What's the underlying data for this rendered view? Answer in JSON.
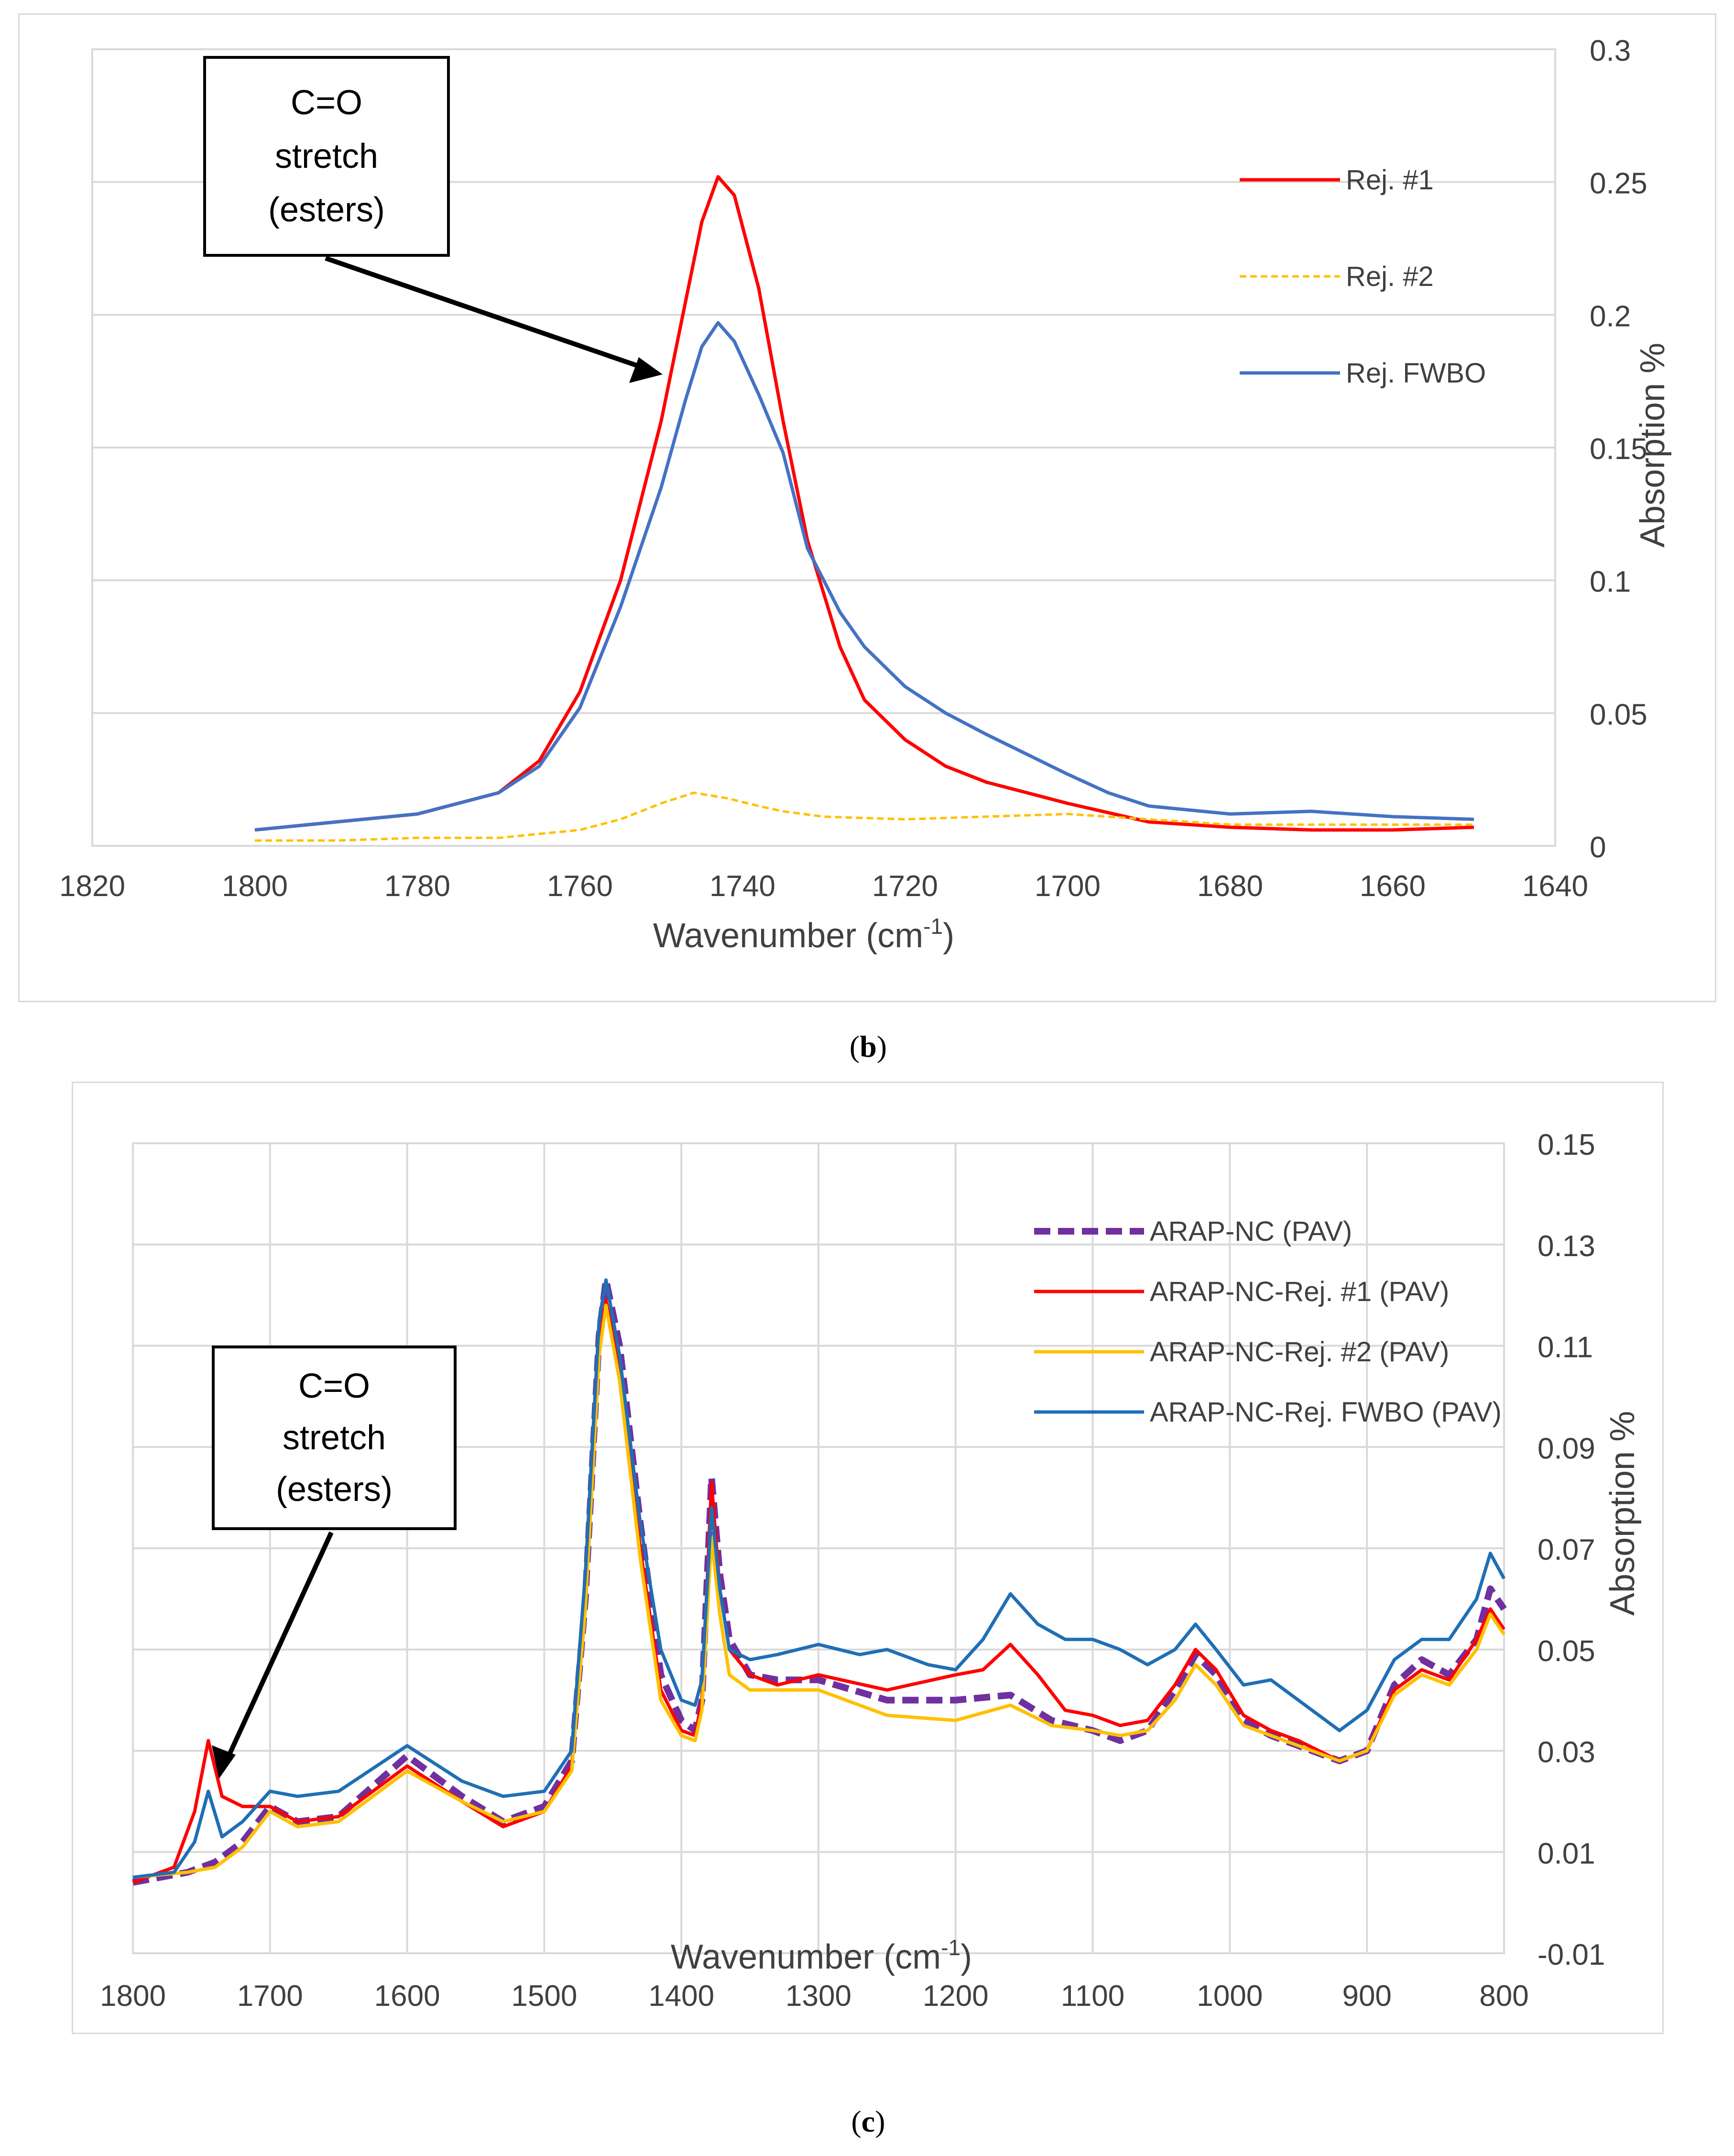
{
  "chart_data": [
    {
      "type": "line",
      "panel_label": "b",
      "title": "",
      "xlabel": "Wavenumber (cm-1)",
      "xlabel_main": "Wavenumber (cm",
      "xlabel_sup": "-1",
      "xlabel_end": ")",
      "ylabel": "Absorption %",
      "xlim": [
        1820,
        1640
      ],
      "ylim": [
        0,
        0.3
      ],
      "x_ticks": [
        "1820",
        "1800",
        "1780",
        "1760",
        "1740",
        "1720",
        "1700",
        "1680",
        "1660",
        "1640"
      ],
      "y_ticks": [
        "0",
        "0.05",
        "0.1",
        "0.15",
        "0.2",
        "0.25",
        "0.3"
      ],
      "grid": "horizontal",
      "legend_position": "top-right",
      "annotation": [
        "C=O",
        "stretch",
        "(esters)"
      ],
      "series": [
        {
          "name": "Rej. #1",
          "color": "#ff0000",
          "style": "solid",
          "x": [
            1800,
            1790,
            1780,
            1770,
            1765,
            1760,
            1755,
            1750,
            1747,
            1745,
            1743,
            1741,
            1738,
            1735,
            1732,
            1728,
            1725,
            1720,
            1715,
            1710,
            1700,
            1690,
            1680,
            1670,
            1660,
            1650
          ],
          "y": [
            0.006,
            0.009,
            0.012,
            0.02,
            0.032,
            0.058,
            0.1,
            0.16,
            0.205,
            0.235,
            0.252,
            0.245,
            0.21,
            0.16,
            0.115,
            0.075,
            0.055,
            0.04,
            0.03,
            0.024,
            0.016,
            0.009,
            0.007,
            0.006,
            0.006,
            0.007
          ]
        },
        {
          "name": "Rej. #2",
          "color": "#ffc000",
          "style": "dashed",
          "x": [
            1800,
            1790,
            1780,
            1770,
            1760,
            1755,
            1750,
            1746,
            1742,
            1738,
            1735,
            1730,
            1720,
            1710,
            1700,
            1690,
            1680,
            1670,
            1660,
            1650
          ],
          "y": [
            0.002,
            0.002,
            0.003,
            0.003,
            0.006,
            0.01,
            0.016,
            0.02,
            0.018,
            0.015,
            0.013,
            0.011,
            0.01,
            0.011,
            0.012,
            0.01,
            0.008,
            0.008,
            0.008,
            0.008
          ]
        },
        {
          "name": "Rej. FWBO",
          "color": "#4472c4",
          "style": "solid",
          "x": [
            1800,
            1790,
            1780,
            1770,
            1765,
            1760,
            1755,
            1750,
            1747,
            1745,
            1743,
            1741,
            1738,
            1735,
            1732,
            1728,
            1725,
            1720,
            1715,
            1710,
            1700,
            1695,
            1690,
            1680,
            1670,
            1660,
            1650
          ],
          "y": [
            0.006,
            0.009,
            0.012,
            0.02,
            0.03,
            0.052,
            0.09,
            0.135,
            0.168,
            0.188,
            0.197,
            0.19,
            0.17,
            0.148,
            0.112,
            0.088,
            0.075,
            0.06,
            0.05,
            0.042,
            0.027,
            0.02,
            0.015,
            0.012,
            0.013,
            0.011,
            0.01
          ]
        }
      ]
    },
    {
      "type": "line",
      "panel_label": "c",
      "title": "",
      "xlabel": "Wavenumber (cm-1)",
      "xlabel_main": "Wavenumber (cm",
      "xlabel_sup": "-1",
      "xlabel_end": ")",
      "ylabel": "Absorption %",
      "xlim": [
        1800,
        800
      ],
      "ylim": [
        -0.01,
        0.15
      ],
      "x_ticks": [
        "1800",
        "1700",
        "1600",
        "1500",
        "1400",
        "1300",
        "1200",
        "1100",
        "1000",
        "900",
        "800"
      ],
      "y_ticks": [
        "-0.01",
        "0.01",
        "0.03",
        "0.05",
        "0.07",
        "0.09",
        "0.11",
        "0.13",
        "0.15"
      ],
      "grid": "both",
      "legend_position": "top-right",
      "annotation": [
        "C=O",
        "stretch",
        "(esters)"
      ],
      "series": [
        {
          "name": "ARAP-NC (PAV)",
          "color": "#7030a0",
          "style": "thick-dashed",
          "x": [
            1800,
            1760,
            1740,
            1720,
            1700,
            1680,
            1650,
            1600,
            1560,
            1530,
            1500,
            1480,
            1470,
            1460,
            1455,
            1445,
            1430,
            1415,
            1400,
            1390,
            1385,
            1378,
            1372,
            1365,
            1350,
            1330,
            1300,
            1250,
            1200,
            1160,
            1130,
            1100,
            1080,
            1060,
            1040,
            1025,
            1010,
            990,
            970,
            950,
            920,
            900,
            880,
            860,
            840,
            820,
            810,
            800
          ],
          "y": [
            0.004,
            0.006,
            0.008,
            0.012,
            0.019,
            0.016,
            0.017,
            0.029,
            0.021,
            0.016,
            0.019,
            0.028,
            0.06,
            0.112,
            0.123,
            0.11,
            0.075,
            0.045,
            0.036,
            0.034,
            0.04,
            0.084,
            0.065,
            0.052,
            0.045,
            0.044,
            0.044,
            0.04,
            0.04,
            0.041,
            0.036,
            0.034,
            0.032,
            0.034,
            0.042,
            0.049,
            0.045,
            0.036,
            0.033,
            0.031,
            0.028,
            0.03,
            0.043,
            0.048,
            0.045,
            0.052,
            0.062,
            0.058
          ]
        },
        {
          "name": "ARAP-NC-Rej. #1 (PAV)",
          "color": "#ff0000",
          "style": "solid",
          "x": [
            1800,
            1770,
            1755,
            1745,
            1735,
            1720,
            1700,
            1680,
            1650,
            1600,
            1560,
            1530,
            1500,
            1480,
            1470,
            1460,
            1455,
            1445,
            1430,
            1415,
            1400,
            1390,
            1385,
            1378,
            1372,
            1365,
            1350,
            1330,
            1300,
            1250,
            1200,
            1180,
            1160,
            1140,
            1120,
            1100,
            1080,
            1060,
            1040,
            1025,
            1010,
            990,
            970,
            950,
            920,
            900,
            880,
            860,
            840,
            820,
            810,
            800
          ],
          "y": [
            0.004,
            0.007,
            0.018,
            0.032,
            0.021,
            0.019,
            0.019,
            0.016,
            0.017,
            0.027,
            0.02,
            0.015,
            0.018,
            0.027,
            0.06,
            0.11,
            0.119,
            0.105,
            0.07,
            0.042,
            0.034,
            0.033,
            0.04,
            0.083,
            0.062,
            0.05,
            0.045,
            0.043,
            0.045,
            0.042,
            0.045,
            0.046,
            0.051,
            0.045,
            0.038,
            0.037,
            0.035,
            0.036,
            0.043,
            0.05,
            0.046,
            0.037,
            0.034,
            0.032,
            0.028,
            0.03,
            0.042,
            0.046,
            0.044,
            0.052,
            0.058,
            0.054
          ]
        },
        {
          "name": "ARAP-NC-Rej. #2 (PAV)",
          "color": "#ffc000",
          "style": "solid",
          "x": [
            1800,
            1760,
            1740,
            1720,
            1700,
            1680,
            1650,
            1600,
            1560,
            1530,
            1500,
            1480,
            1470,
            1460,
            1455,
            1445,
            1430,
            1415,
            1400,
            1390,
            1385,
            1378,
            1372,
            1365,
            1350,
            1330,
            1300,
            1250,
            1200,
            1160,
            1130,
            1100,
            1080,
            1060,
            1040,
            1025,
            1010,
            990,
            970,
            950,
            920,
            900,
            880,
            860,
            840,
            820,
            810,
            800
          ],
          "y": [
            0.005,
            0.006,
            0.007,
            0.011,
            0.018,
            0.015,
            0.016,
            0.026,
            0.02,
            0.016,
            0.018,
            0.026,
            0.058,
            0.108,
            0.118,
            0.103,
            0.068,
            0.04,
            0.033,
            0.032,
            0.038,
            0.072,
            0.057,
            0.045,
            0.042,
            0.042,
            0.042,
            0.037,
            0.036,
            0.039,
            0.035,
            0.034,
            0.033,
            0.034,
            0.04,
            0.047,
            0.043,
            0.035,
            0.033,
            0.031,
            0.028,
            0.03,
            0.041,
            0.045,
            0.043,
            0.05,
            0.057,
            0.053
          ]
        },
        {
          "name": "ARAP-NC-Rej. FWBO (PAV)",
          "color": "#1f6fb5",
          "style": "solid",
          "x": [
            1800,
            1770,
            1755,
            1745,
            1735,
            1720,
            1700,
            1680,
            1650,
            1600,
            1560,
            1530,
            1500,
            1480,
            1470,
            1460,
            1455,
            1445,
            1430,
            1415,
            1400,
            1390,
            1385,
            1378,
            1372,
            1365,
            1350,
            1330,
            1300,
            1270,
            1250,
            1220,
            1200,
            1180,
            1160,
            1140,
            1120,
            1100,
            1080,
            1060,
            1040,
            1025,
            1010,
            990,
            970,
            950,
            920,
            900,
            880,
            860,
            840,
            820,
            810,
            800
          ],
          "y": [
            0.005,
            0.006,
            0.012,
            0.022,
            0.013,
            0.016,
            0.022,
            0.021,
            0.022,
            0.031,
            0.024,
            0.021,
            0.022,
            0.03,
            0.065,
            0.115,
            0.123,
            0.108,
            0.075,
            0.05,
            0.04,
            0.039,
            0.044,
            0.078,
            0.062,
            0.05,
            0.048,
            0.049,
            0.051,
            0.049,
            0.05,
            0.047,
            0.046,
            0.052,
            0.061,
            0.055,
            0.052,
            0.052,
            0.05,
            0.047,
            0.05,
            0.055,
            0.05,
            0.043,
            0.044,
            0.04,
            0.034,
            0.038,
            0.048,
            0.052,
            0.052,
            0.06,
            0.069,
            0.064
          ]
        }
      ]
    }
  ]
}
